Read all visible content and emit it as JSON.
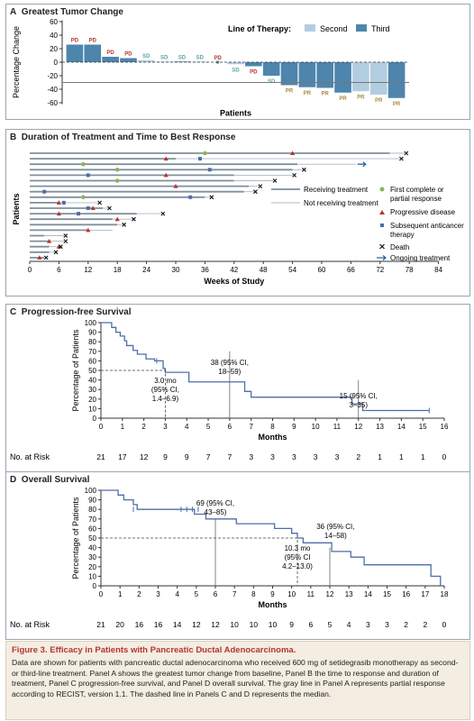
{
  "panels": {
    "a": {
      "letter": "A",
      "title": "Greatest Tumor Change",
      "legend_title": "Line of Therapy:",
      "legend_items": [
        "Second",
        "Third"
      ],
      "ylabel": "Percentage Change",
      "xlabel": "Patients",
      "yticks": [
        "60",
        "40",
        "20",
        "0",
        "-20",
        "-40",
        "-60"
      ],
      "colors": {
        "second": "#b3cde0",
        "third": "#4d85ac",
        "pd": "#b5352f",
        "sd": "#5aa5a0",
        "pr": "#a58a3b"
      }
    },
    "b": {
      "letter": "B",
      "title": "Duration of Treatment and Time to Best Response",
      "ylabel": "Patients",
      "xlabel": "Weeks of Study",
      "xticks": [
        "0",
        "6",
        "12",
        "18",
        "24",
        "30",
        "36",
        "42",
        "48",
        "54",
        "60",
        "66",
        "72",
        "78",
        "84"
      ],
      "line_legend": [
        "Receiving treatment",
        "Not receiving treatment"
      ],
      "marker_legend": [
        "First complete or partial response",
        "Progressive disease",
        "Subsequent anticancer therapy",
        "Death",
        "Ongoing treatment"
      ]
    },
    "c": {
      "letter": "C",
      "title": "Progression-free Survival",
      "ylabel": "Percentage of Patients",
      "xlabel": "Months",
      "yticks": [
        "100",
        "90",
        "80",
        "70",
        "60",
        "50",
        "40",
        "30",
        "20",
        "10",
        "0"
      ],
      "xticks": [
        "0",
        "1",
        "2",
        "3",
        "4",
        "5",
        "6",
        "7",
        "8",
        "9",
        "10",
        "11",
        "12",
        "13",
        "14",
        "15",
        "16"
      ],
      "risk_label": "No. at Risk",
      "risk": [
        "21",
        "17",
        "12",
        "9",
        "9",
        "7",
        "7",
        "3",
        "3",
        "3",
        "3",
        "3",
        "2",
        "1",
        "1",
        "1",
        "0"
      ],
      "median_lines": [
        "3.0 mo",
        "(95% CI,",
        "1.4–6.9)"
      ],
      "ann6_lines": [
        "38 (95% CI,",
        "18–59)"
      ],
      "ann12_lines": [
        "15 (95% CI,",
        "3–35)"
      ]
    },
    "d": {
      "letter": "D",
      "title": "Overall Survival",
      "ylabel": "Percentage of Patients",
      "xlabel": "Months",
      "yticks": [
        "100",
        "90",
        "80",
        "70",
        "60",
        "50",
        "40",
        "30",
        "20",
        "10",
        "0"
      ],
      "xticks": [
        "0",
        "1",
        "2",
        "3",
        "4",
        "5",
        "6",
        "7",
        "8",
        "9",
        "10",
        "11",
        "12",
        "13",
        "14",
        "15",
        "16",
        "17",
        "18"
      ],
      "risk_label": "No. at Risk",
      "risk": [
        "21",
        "20",
        "16",
        "16",
        "14",
        "12",
        "12",
        "10",
        "10",
        "10",
        "9",
        "6",
        "5",
        "4",
        "3",
        "3",
        "2",
        "2",
        "0"
      ],
      "median_lines": [
        "10.3 mo",
        "(95% CI",
        "4.2–13.0)"
      ],
      "ann6_lines": [
        "69 (95% CI,",
        "43–85)"
      ],
      "ann12_lines": [
        "36 (95% CI,",
        "14–58)"
      ]
    }
  },
  "caption": {
    "title": "Figure 3. Efficacy in Patients with Pancreatic Ductal Adenocarcinoma.",
    "text": "Data are shown for patients with pancreatic ductal adenocarcinoma who received 600 mg of setidegrasib monotherapy as second- or third-line treatment. Panel A shows the greatest tumor change from baseline, Panel B the time to response and duration of treatment, Panel C progression-free survival, and Panel D overall survival. The gray line in Panel A represents partial response according to RECIST, version 1.1. The dashed line in Panels C and D represents the median."
  },
  "chart_data": [
    {
      "type": "bar",
      "panel": "A",
      "title": "Greatest Tumor Change",
      "xlabel": "Patients",
      "ylabel": "Percentage Change",
      "ylim": [
        -65,
        65
      ],
      "reference_line": -30,
      "legend": {
        "title": "Line of Therapy:",
        "entries": [
          "Second",
          "Third"
        ],
        "placement": "top"
      },
      "bars": [
        {
          "value": 26,
          "line": "Third",
          "label": "PD"
        },
        {
          "value": 26,
          "line": "Third",
          "label": "PD"
        },
        {
          "value": 8,
          "line": "Third",
          "label": "PD"
        },
        {
          "value": 6,
          "line": "Third",
          "label": "PD"
        },
        {
          "value": 3,
          "line": "Second",
          "label": "SD"
        },
        {
          "value": 1,
          "line": "Second",
          "label": "SD"
        },
        {
          "value": 1,
          "line": "Third",
          "label": "SD"
        },
        {
          "value": 1,
          "line": "Second",
          "label": "SD"
        },
        {
          "value": 0,
          "line": "Third",
          "label": "PD"
        },
        {
          "value": -3,
          "line": "Second",
          "label": "SD"
        },
        {
          "value": -6,
          "line": "Third",
          "label": "PD"
        },
        {
          "value": -20,
          "line": "Third",
          "label": "SD"
        },
        {
          "value": -34,
          "line": "Third",
          "label": "PR"
        },
        {
          "value": -37,
          "line": "Third",
          "label": "PR"
        },
        {
          "value": -38,
          "line": "Third",
          "label": "PR"
        },
        {
          "value": -45,
          "line": "Third",
          "label": "PR"
        },
        {
          "value": -43,
          "line": "Second",
          "label": "PR"
        },
        {
          "value": -48,
          "line": "Second",
          "label": "PR"
        },
        {
          "value": -53,
          "line": "Third",
          "label": "PR"
        }
      ]
    },
    {
      "type": "swimmer",
      "panel": "B",
      "title": "Duration of Treatment and Time to Best Response",
      "xlabel": "Weeks of Study",
      "ylabel": "Patients",
      "xlim": [
        0,
        84
      ],
      "legend_placement": "right",
      "patients": [
        {
          "treat": 74,
          "end": 77,
          "resp": 36,
          "prog": 54,
          "death": 77
        },
        {
          "treat": 30,
          "end": 76,
          "prog": 28,
          "anti": 35,
          "death": 76
        },
        {
          "treat": 55,
          "end": 67,
          "resp": 11,
          "ongoing": true
        },
        {
          "treat": 54,
          "end": 56,
          "resp": 18,
          "anti": 37,
          "death": 56
        },
        {
          "treat": 42,
          "end": 54,
          "anti": 12,
          "prog": 28,
          "death": 54
        },
        {
          "treat": 42,
          "end": 50,
          "resp": 18,
          "death": 50
        },
        {
          "treat": 45,
          "end": 47,
          "prog": 30,
          "death": 47
        },
        {
          "treat": 44,
          "end": 46,
          "anti": 3,
          "death": 46
        },
        {
          "treat": 36,
          "end": 37,
          "resp": 11,
          "anti": 33,
          "death": 37
        },
        {
          "treat": 6,
          "end": 14,
          "prog": 6,
          "anti": 7,
          "death": 14
        },
        {
          "treat": 15,
          "end": 16,
          "prog": 13,
          "anti": 12,
          "death": 16
        },
        {
          "treat": 22,
          "end": 27,
          "prog": 6,
          "anti": 10,
          "death": 27
        },
        {
          "treat": 17,
          "end": 21,
          "prog": 18,
          "death": 21
        },
        {
          "treat": 18,
          "end": 19,
          "death": 19
        },
        {
          "treat": 12,
          "end": 17,
          "prog": 12
        },
        {
          "treat": 3,
          "end": 7,
          "death": 7
        },
        {
          "treat": 4,
          "end": 7,
          "prog": 4,
          "death": 7
        },
        {
          "treat": 4,
          "end": 6,
          "prog": 6,
          "death": 6
        },
        {
          "treat": 4,
          "end": 5,
          "death": 5
        },
        {
          "treat": 3,
          "end": 3,
          "prog": 2,
          "death": 3
        }
      ]
    },
    {
      "type": "line",
      "panel": "C",
      "title": "Progression-free Survival",
      "xlabel": "Months",
      "ylabel": "Percentage of Patients",
      "xlim": [
        0,
        16
      ],
      "ylim": [
        0,
        100
      ],
      "median_months": 3.0,
      "x": [
        0,
        0.5,
        0.7,
        0.9,
        1.1,
        1.2,
        1.5,
        1.7,
        2.1,
        2.5,
        2.9,
        3.0,
        4.1,
        6.7,
        7.0,
        11.7,
        12.2,
        15.3
      ],
      "y": [
        100,
        95,
        90,
        86,
        81,
        76,
        71,
        67,
        62,
        60,
        52,
        48,
        38,
        28,
        22,
        15,
        8,
        8
      ]
    },
    {
      "type": "line",
      "panel": "D",
      "title": "Overall Survival",
      "xlabel": "Months",
      "ylabel": "Percentage of Patients",
      "xlim": [
        0,
        18
      ],
      "ylim": [
        0,
        100
      ],
      "median_months": 10.3,
      "x": [
        0,
        0.9,
        1.2,
        1.7,
        1.9,
        4.9,
        5.5,
        7.1,
        9.1,
        10.0,
        10.3,
        10.6,
        12.1,
        13.1,
        13.8,
        17.3,
        17.8
      ],
      "y": [
        100,
        95,
        90,
        85,
        80,
        75,
        70,
        65,
        60,
        55,
        50,
        45,
        36,
        30,
        22,
        10,
        0
      ]
    }
  ]
}
